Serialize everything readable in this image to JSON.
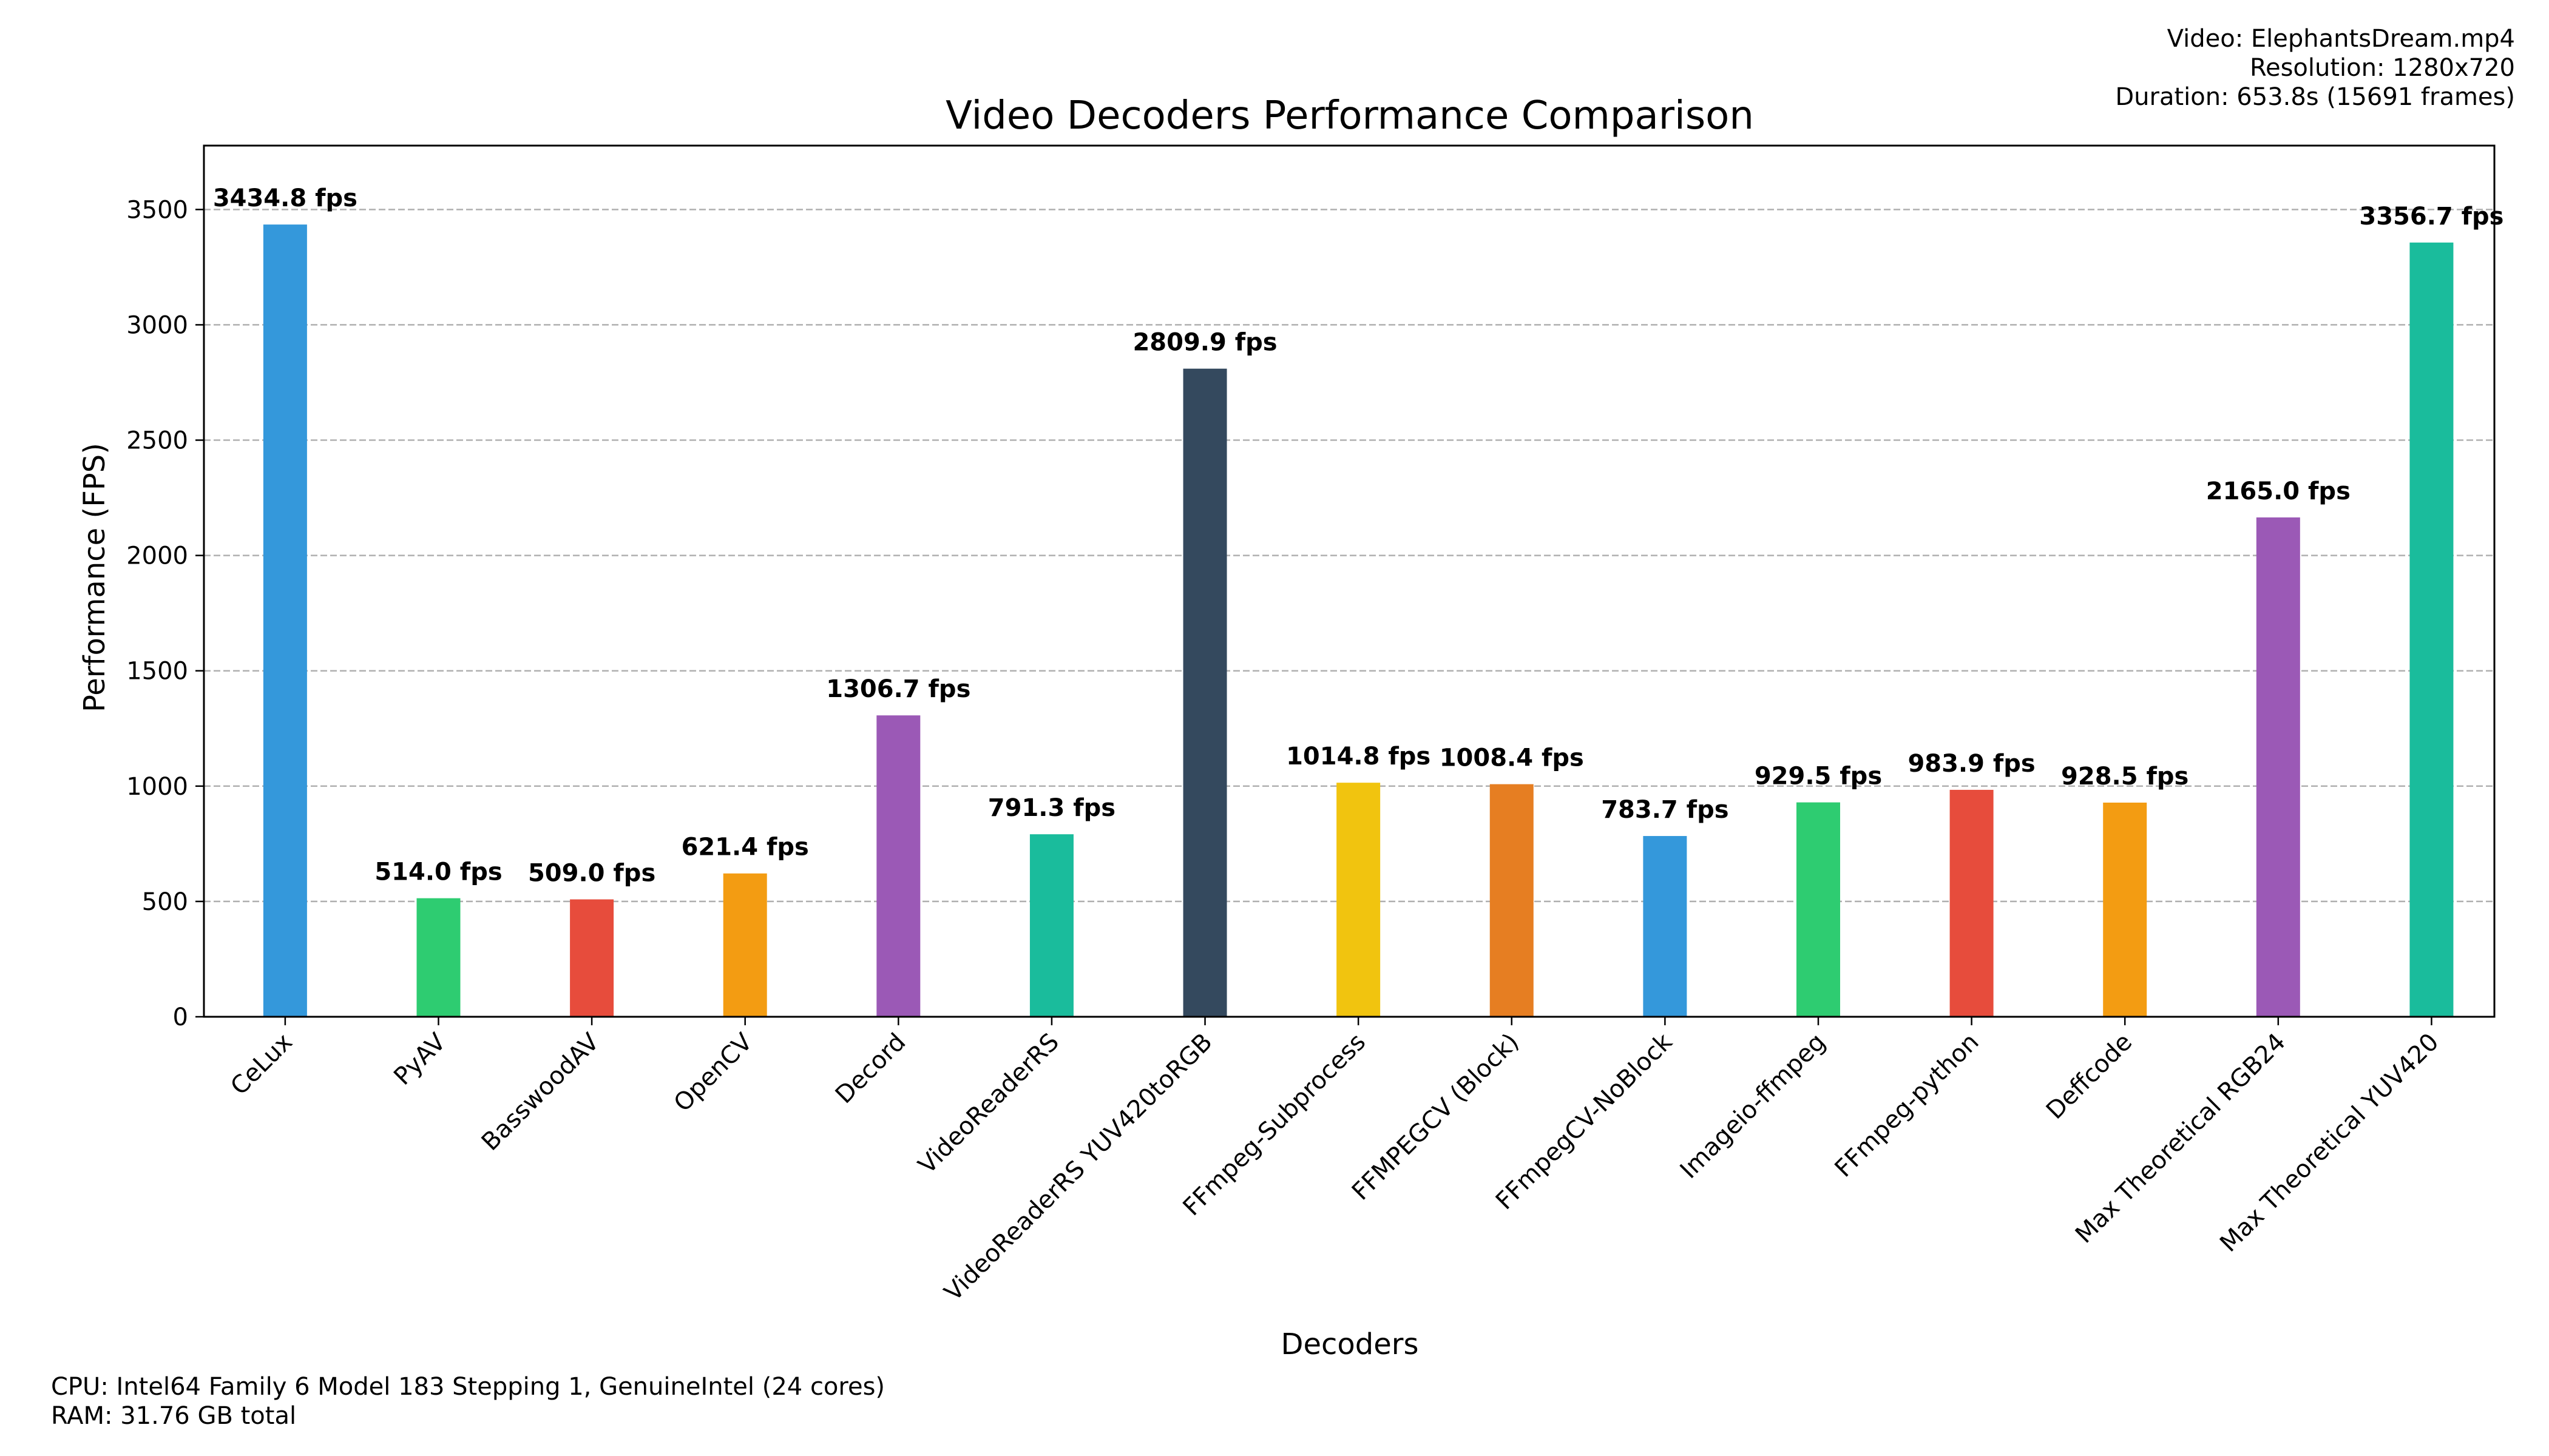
{
  "info": {
    "video": "Video: ElephantsDream.mp4",
    "resolution": "Resolution: 1280x720",
    "duration": "Duration: 653.8s (15691 frames)",
    "cpu": "CPU: Intel64 Family 6 Model 183 Stepping 1, GenuineIntel (24 cores)",
    "ram": "RAM: 31.76 GB total"
  },
  "chart_data": {
    "type": "bar",
    "title": "Video Decoders Performance Comparison",
    "xlabel": "Decoders",
    "ylabel": "Performance (FPS)",
    "ylim": [
      0,
      3777
    ],
    "yticks": [
      0,
      500,
      1000,
      1500,
      2000,
      2500,
      3000,
      3500
    ],
    "grid": "y-dashed",
    "categories": [
      "CeLux",
      "PyAV",
      "BasswoodAV",
      "OpenCV",
      "Decord",
      "VideoReaderRS",
      "VideoReaderRS YUV420toRGB",
      "FFmpeg-Subprocess",
      "FFMPEGCV (Block)",
      "FFmpegCV-NoBlock",
      "Imageio-ffmpeg",
      "FFmpeg-python",
      "Deffcode",
      "Max Theoretical RGB24",
      "Max Theoretical YUV420"
    ],
    "values": [
      3434.8,
      514.0,
      509.0,
      621.4,
      1306.7,
      791.3,
      2809.9,
      1014.8,
      1008.4,
      783.7,
      929.5,
      983.9,
      928.5,
      2165.0,
      3356.7
    ],
    "data_labels": [
      "3434.8 fps",
      "514.0 fps",
      "509.0 fps",
      "621.4 fps",
      "1306.7 fps",
      "791.3 fps",
      "2809.9 fps",
      "1014.8 fps",
      "1008.4 fps",
      "783.7 fps",
      "929.5 fps",
      "983.9 fps",
      "928.5 fps",
      "2165.0 fps",
      "3356.7 fps"
    ],
    "colors": [
      "#3498db",
      "#2ecc71",
      "#e74c3c",
      "#f39c12",
      "#9b59b6",
      "#1abc9c",
      "#34495e",
      "#f1c40f",
      "#e67e22",
      "#3498db",
      "#2ecc71",
      "#e74c3c",
      "#f39c12",
      "#9b59b6",
      "#1abc9c"
    ]
  }
}
